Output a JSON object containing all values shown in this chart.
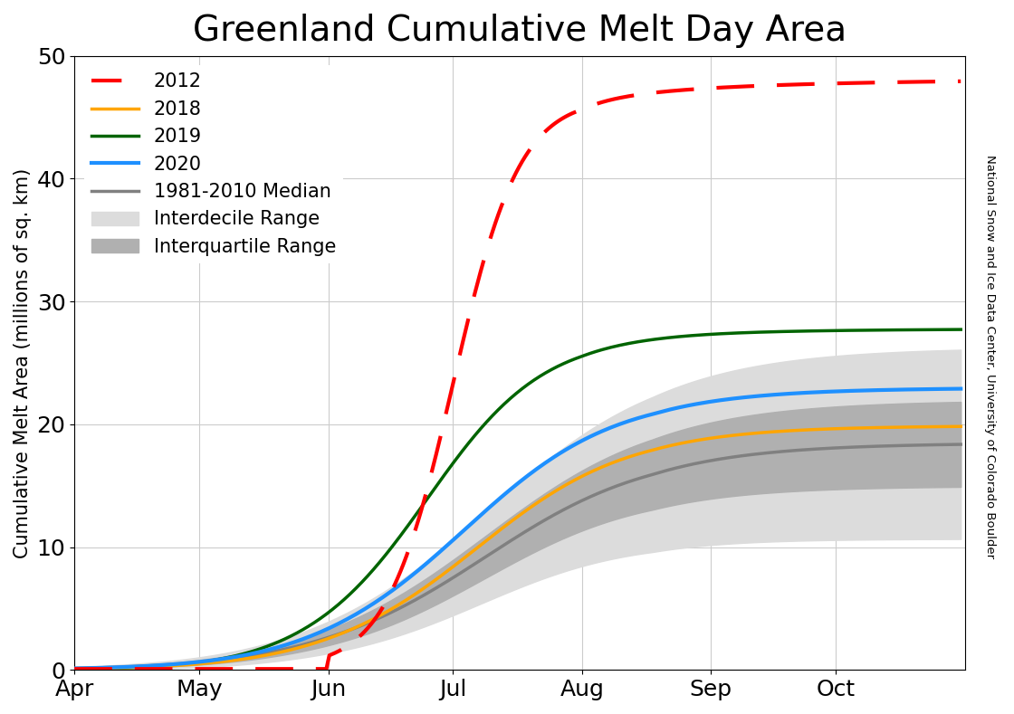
{
  "title": "Greenland Cumulative Melt Day Area",
  "ylabel": "Cumulative Melt Area (millions of sq. km)",
  "right_label": "National Snow and Ice Data Center, University of Colorado Boulder",
  "xlim": [
    91,
    305
  ],
  "ylim": [
    0,
    50
  ],
  "yticks": [
    0,
    10,
    20,
    30,
    40,
    50
  ],
  "xtick_positions": [
    91,
    121,
    152,
    182,
    213,
    244,
    274
  ],
  "xtick_labels": [
    "Apr",
    "May",
    "Jun",
    "Jul",
    "Aug",
    "Sep",
    "Oct"
  ],
  "title_fontsize": 28,
  "label_fontsize": 15,
  "tick_fontsize": 18,
  "legend_fontsize": 15,
  "colors": {
    "2012": "#ff0000",
    "2018": "#ffa500",
    "2019": "#006400",
    "2020": "#1e90ff",
    "median": "#808080",
    "interdecile": "#dcdcdc",
    "interquartile": "#b0b0b0"
  }
}
